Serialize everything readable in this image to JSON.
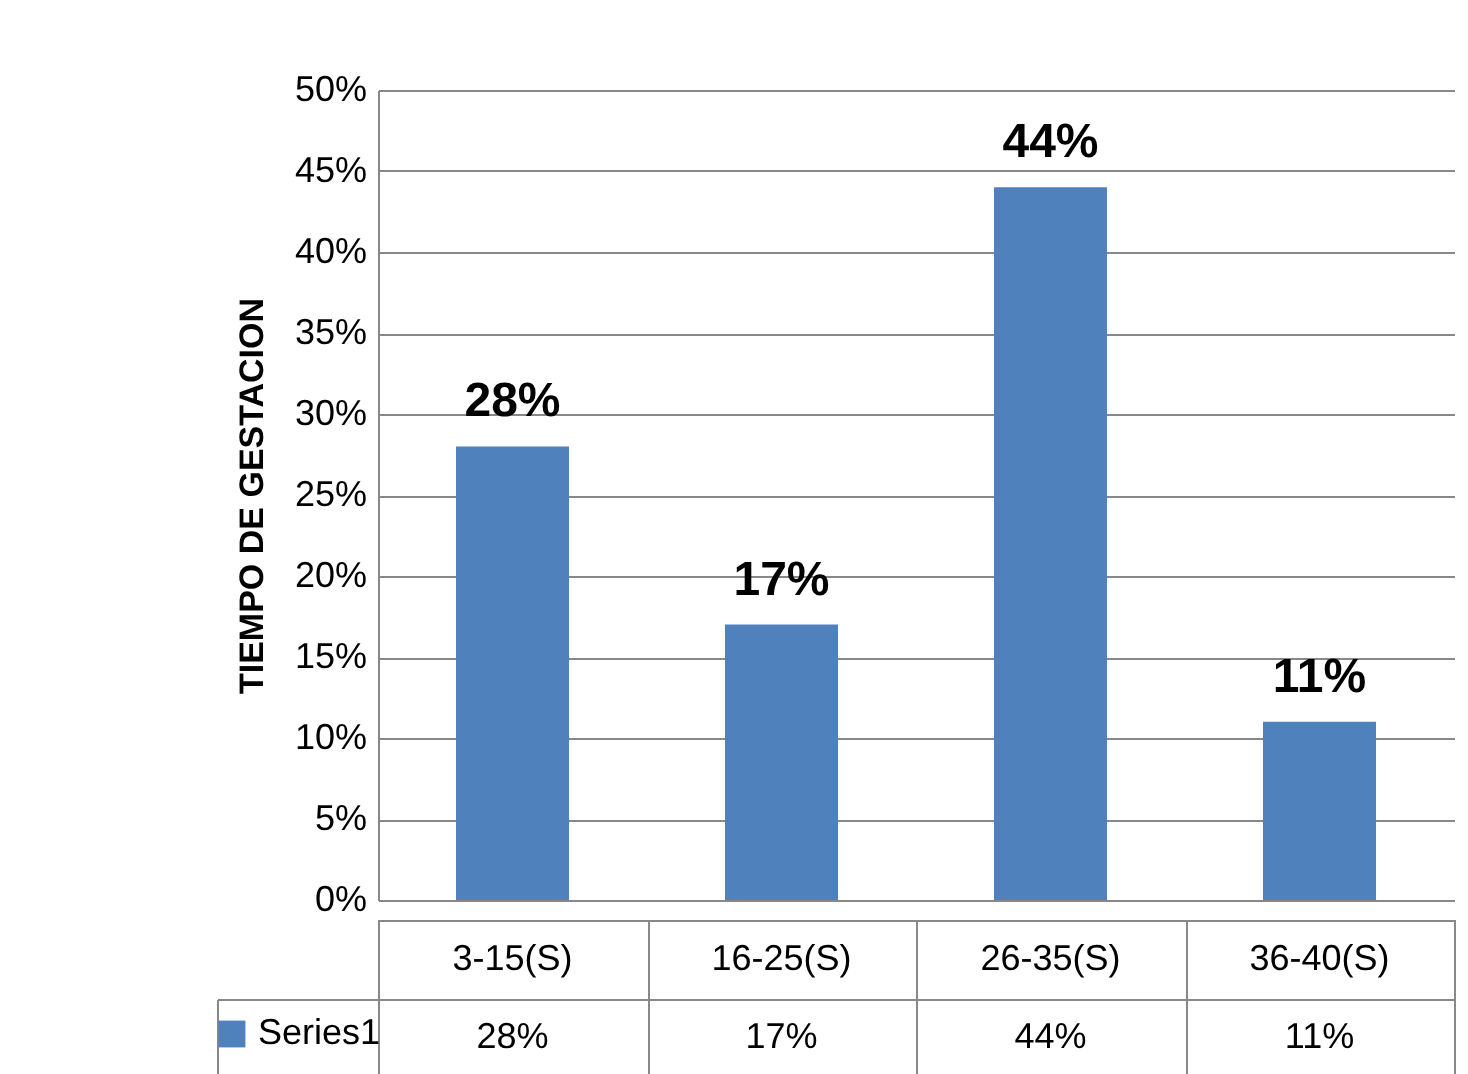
{
  "chart_data": {
    "type": "bar",
    "ylabel": "TIEMPO DE GESTACION",
    "categories": [
      "3-15(S)",
      "16-25(S)",
      "26-35(S)",
      "36-40(S)"
    ],
    "series": [
      {
        "name": "Series1",
        "color": "#4f81bd",
        "values": [
          28,
          17,
          44,
          11
        ],
        "value_labels": [
          "28%",
          "17%",
          "44%",
          "11%"
        ]
      }
    ],
    "ylim": [
      0,
      50
    ],
    "yticks": [
      {
        "value": 0,
        "label": "0%"
      },
      {
        "value": 5,
        "label": "5%"
      },
      {
        "value": 10,
        "label": "10%"
      },
      {
        "value": 15,
        "label": "15%"
      },
      {
        "value": 20,
        "label": "20%"
      },
      {
        "value": 25,
        "label": "25%"
      },
      {
        "value": 30,
        "label": "30%"
      },
      {
        "value": 35,
        "label": "35%"
      },
      {
        "value": 40,
        "label": "40%"
      },
      {
        "value": 45,
        "label": "45%"
      },
      {
        "value": 50,
        "label": "50%"
      }
    ],
    "grid": "y",
    "legend": "bottom"
  }
}
